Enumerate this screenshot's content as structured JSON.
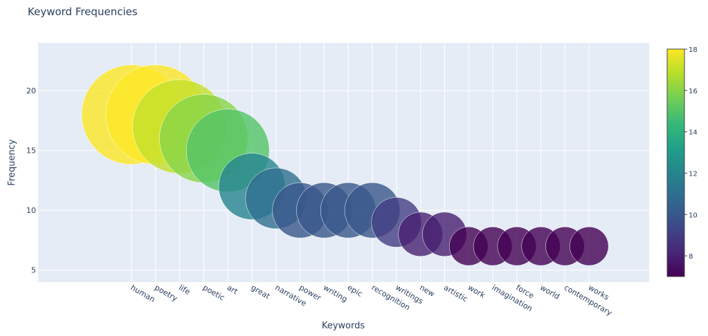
{
  "chart_data": {
    "type": "scatter",
    "title": "Keyword Frequencies",
    "xlabel": "Keywords",
    "ylabel": "Frequency",
    "ylim": [
      4,
      24
    ],
    "y_ticks": [
      5,
      10,
      15,
      20
    ],
    "grid": true,
    "marker_size_encodes": "value",
    "categories": [
      "human",
      "poetry",
      "life",
      "poetic",
      "art",
      "great",
      "narrative",
      "power",
      "writing",
      "epic",
      "recognition",
      "writings",
      "new",
      "artistic",
      "work",
      "imagination",
      "force",
      "world",
      "contemporary",
      "works"
    ],
    "values": [
      18,
      18,
      17,
      16,
      15,
      12,
      11,
      10,
      10,
      10,
      10,
      9,
      8,
      8,
      7,
      7,
      7,
      7,
      7,
      7
    ],
    "colorbar": {
      "colorscale": "Viridis",
      "range": [
        7,
        18
      ],
      "ticks": [
        8,
        10,
        12,
        14,
        16,
        18
      ]
    }
  }
}
